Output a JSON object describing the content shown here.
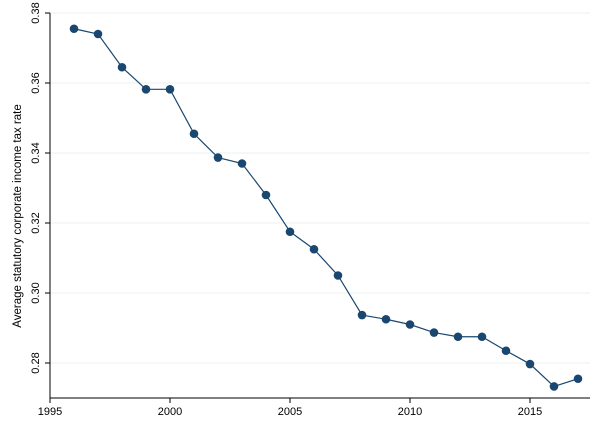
{
  "chart_data": {
    "type": "line",
    "title": "",
    "xlabel": "",
    "ylabel": "Average statutory corporate income tax rate",
    "xlim": [
      1995,
      2017.5
    ],
    "ylim": [
      0.27,
      0.38
    ],
    "xticks": [
      1995,
      2000,
      2005,
      2010,
      2015
    ],
    "yticks": [
      0.28,
      0.3,
      0.32,
      0.34,
      0.36,
      0.38
    ],
    "ytick_labels": [
      "0.28",
      "0.30",
      "0.32",
      "0.34",
      "0.36",
      "0.38"
    ],
    "grid": "horizontal",
    "legend": "none",
    "colors": {
      "series": "#1a476f",
      "grid": "#eaf2f3",
      "axis": "#000000",
      "background": "#ffffff"
    },
    "series": [
      {
        "x": [
          1996,
          1997,
          1998,
          1999,
          2000,
          2001,
          2002,
          2003,
          2004,
          2005,
          2006,
          2007,
          2008,
          2009,
          2010,
          2011,
          2012,
          2013,
          2014,
          2015,
          2016,
          2017
        ],
        "values": [
          0.3755,
          0.374,
          0.3645,
          0.3582,
          0.3582,
          0.3455,
          0.3387,
          0.337,
          0.328,
          0.3175,
          0.3125,
          0.305,
          0.2937,
          0.2925,
          0.291,
          0.2887,
          0.2875,
          0.2875,
          0.2835,
          0.2797,
          0.2733,
          0.2755
        ]
      }
    ]
  }
}
